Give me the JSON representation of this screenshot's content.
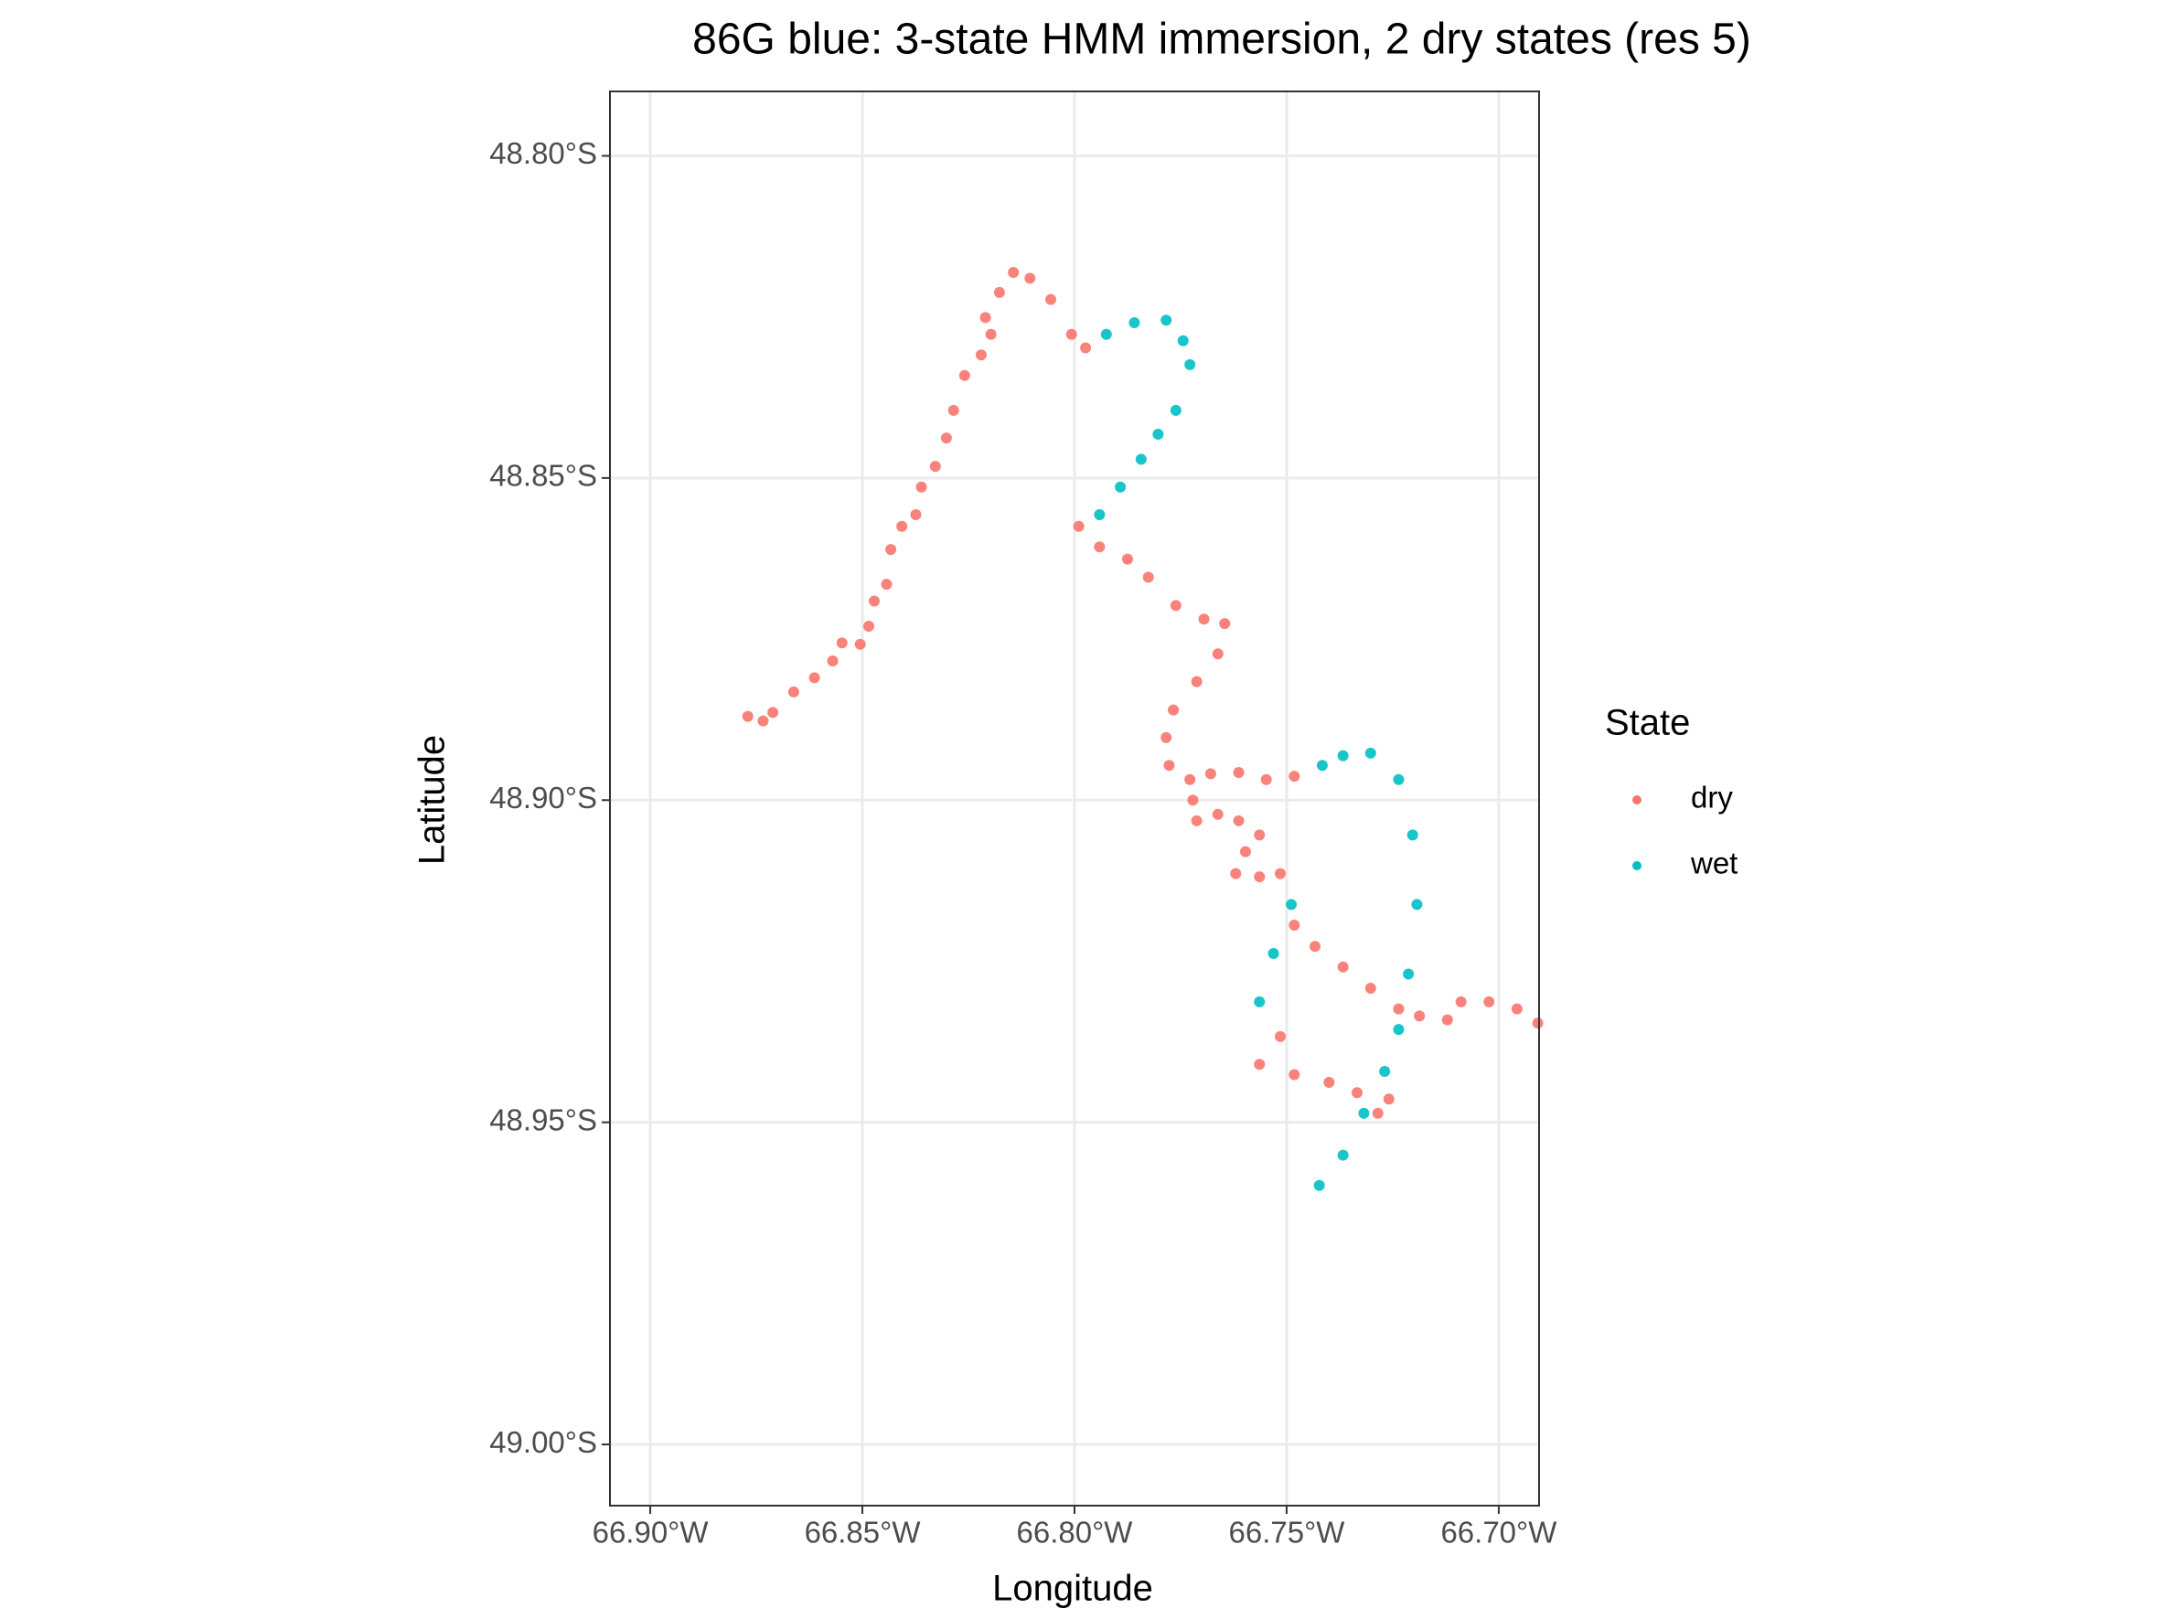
{
  "chart_data": {
    "type": "scatter",
    "title": "86G blue: 3-state HMM immersion, 2 dry states (res 5)",
    "x_label": "Longitude",
    "y_label": "Latitude",
    "legend_title": "State",
    "legend_position": "right",
    "grid": true,
    "xlim": [
      -66.9095,
      -66.6905
    ],
    "ylim": [
      -49.0095,
      -48.79
    ],
    "xticks": [
      {
        "value": -66.9,
        "label": "66.90°W"
      },
      {
        "value": -66.85,
        "label": "66.85°W"
      },
      {
        "value": -66.8,
        "label": "66.80°W"
      },
      {
        "value": -66.75,
        "label": "66.75°W"
      },
      {
        "value": -66.7,
        "label": "66.70°W"
      }
    ],
    "yticks": [
      {
        "value": -48.8,
        "label": "48.80°S"
      },
      {
        "value": -48.85,
        "label": "48.85°S"
      },
      {
        "value": -48.9,
        "label": "48.90°S"
      },
      {
        "value": -48.95,
        "label": "48.95°S"
      },
      {
        "value": -49.0,
        "label": "49.00°S"
      }
    ],
    "series": [
      {
        "name": "dry",
        "color": "#f8766d",
        "x": [
          -66.877,
          -66.8734,
          -66.8711,
          -66.8662,
          -66.8613,
          -66.857,
          -66.8548,
          -66.8505,
          -66.8485,
          -66.8472,
          -66.8443,
          -66.8433,
          -66.8407,
          -66.8374,
          -66.8361,
          -66.8328,
          -66.8302,
          -66.8285,
          -66.8259,
          -66.822,
          -66.8197,
          -66.821,
          -66.8177,
          -66.8144,
          -66.8105,
          -66.8056,
          -66.8007,
          -66.7974,
          -66.799,
          -66.7941,
          -66.7875,
          -66.7826,
          -66.7761,
          -66.7695,
          -66.7646,
          -66.7662,
          -66.7712,
          -66.7767,
          -66.7784,
          -66.7777,
          -66.7728,
          -66.7679,
          -66.7613,
          -66.7548,
          -66.7482,
          -66.7721,
          -66.7712,
          -66.7662,
          -66.7613,
          -66.7564,
          -66.7597,
          -66.762,
          -66.7564,
          -66.7515,
          -66.7482,
          -66.7433,
          -66.7367,
          -66.7302,
          -66.7236,
          -66.7187,
          -66.7121,
          -66.7089,
          -66.7023,
          -66.6957,
          -66.6908,
          -66.7515,
          -66.7564,
          -66.7482,
          -66.74,
          -66.7334,
          -66.7259,
          -66.7285
        ],
        "values": [
          -48.887,
          -48.8877,
          -48.8864,
          -48.8832,
          -48.881,
          -48.8784,
          -48.8756,
          -48.8758,
          -48.873,
          -48.8691,
          -48.8665,
          -48.8611,
          -48.8575,
          -48.8557,
          -48.8514,
          -48.8482,
          -48.8438,
          -48.8395,
          -48.8341,
          -48.8309,
          -48.8277,
          -48.8251,
          -48.8212,
          -48.8181,
          -48.819,
          -48.8223,
          -48.8277,
          -48.8298,
          -48.8575,
          -48.8607,
          -48.8626,
          -48.8654,
          -48.8698,
          -48.8719,
          -48.8726,
          -48.8773,
          -48.8816,
          -48.886,
          -48.8903,
          -48.8946,
          -48.8968,
          -48.8959,
          -48.8957,
          -48.8968,
          -48.8963,
          -48.9,
          -48.9032,
          -48.9022,
          -48.9032,
          -48.9054,
          -48.908,
          -48.9114,
          -48.9119,
          -48.9114,
          -48.9194,
          -48.9227,
          -48.9259,
          -48.9292,
          -48.9324,
          -48.9335,
          -48.9341,
          -48.9313,
          -48.9313,
          -48.9324,
          -48.9346,
          -48.9367,
          -48.941,
          -48.9426,
          -48.9438,
          -48.9454,
          -48.9464,
          -48.9486
        ]
      },
      {
        "name": "wet",
        "color": "#00bfc4",
        "x": [
          -66.7925,
          -66.7859,
          -66.7784,
          -66.7744,
          -66.7728,
          -66.7761,
          -66.7803,
          -66.7843,
          -66.7892,
          -66.7941,
          -66.7416,
          -66.7367,
          -66.7302,
          -66.7236,
          -66.7203,
          -66.7193,
          -66.7213,
          -66.7236,
          -66.7269,
          -66.7318,
          -66.7367,
          -66.7423,
          -66.7489,
          -66.7531,
          -66.7564
        ],
        "values": [
          -48.8277,
          -48.8259,
          -48.8255,
          -48.8287,
          -48.8324,
          -48.8395,
          -48.8432,
          -48.8471,
          -48.8514,
          -48.8557,
          -48.8946,
          -48.8931,
          -48.8927,
          -48.8968,
          -48.9054,
          -48.9162,
          -48.927,
          -48.9356,
          -48.9421,
          -48.9486,
          -48.9551,
          -48.9598,
          -48.9162,
          -48.9238,
          -48.9313
        ]
      }
    ]
  }
}
